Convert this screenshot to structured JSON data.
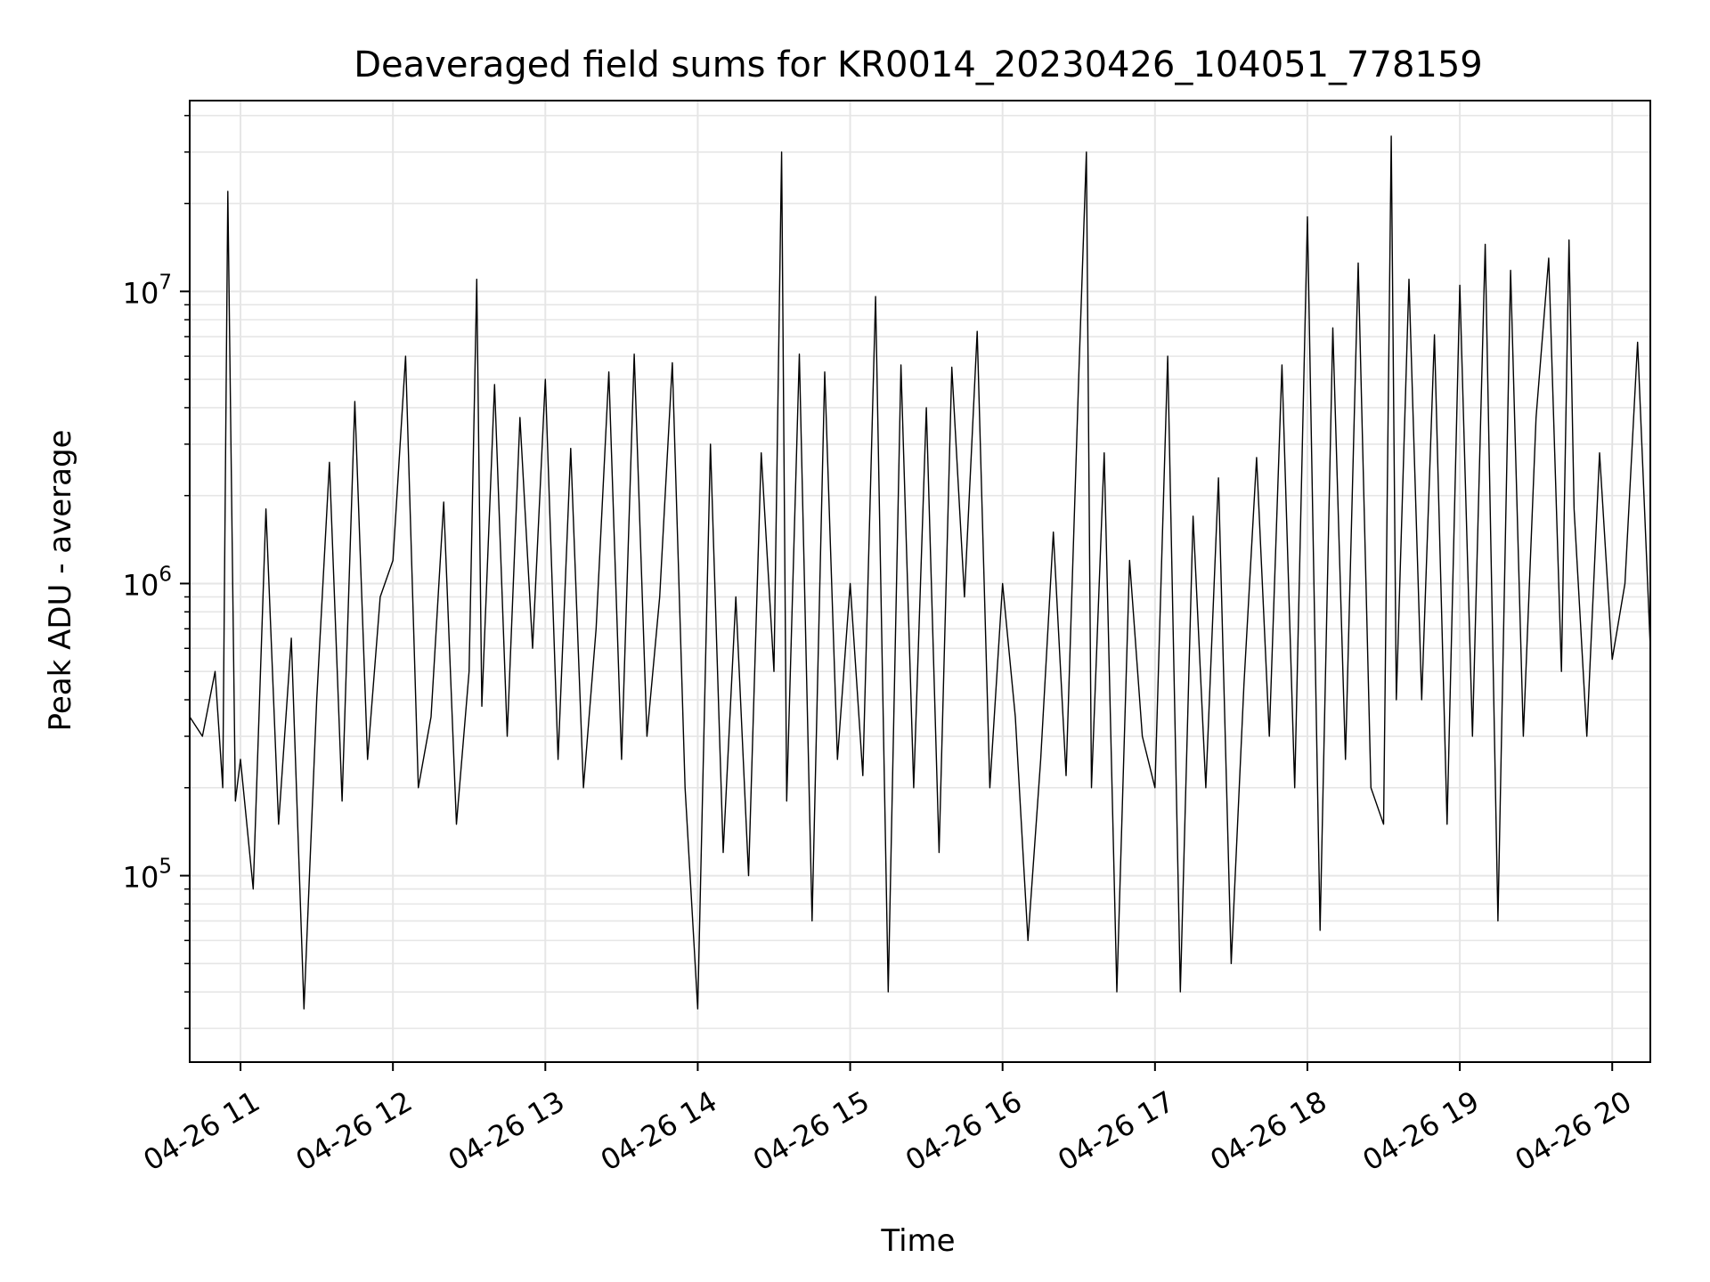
{
  "chart_data": {
    "type": "line",
    "title": "Deaveraged field sums for KR0014_20230426_104051_778159",
    "xlabel": "Time",
    "ylabel": "Peak ADU - average",
    "yscale": "log",
    "ylim": [
      23000,
      45000000
    ],
    "xlim": [
      "2023-04-26 10:40",
      "2023-04-26 20:15"
    ],
    "grid": true,
    "x_ticks": [
      {
        "time": "2023-04-26 11:00",
        "label": "04-26 11"
      },
      {
        "time": "2023-04-26 12:00",
        "label": "04-26 12"
      },
      {
        "time": "2023-04-26 13:00",
        "label": "04-26 13"
      },
      {
        "time": "2023-04-26 14:00",
        "label": "04-26 14"
      },
      {
        "time": "2023-04-26 15:00",
        "label": "04-26 15"
      },
      {
        "time": "2023-04-26 16:00",
        "label": "04-26 16"
      },
      {
        "time": "2023-04-26 17:00",
        "label": "04-26 17"
      },
      {
        "time": "2023-04-26 18:00",
        "label": "04-26 18"
      },
      {
        "time": "2023-04-26 19:00",
        "label": "04-26 19"
      },
      {
        "time": "2023-04-26 20:00",
        "label": "04-26 20"
      }
    ],
    "y_ticks": [
      {
        "value": 100000,
        "base": "10",
        "exp": "5"
      },
      {
        "value": 1000000,
        "base": "10",
        "exp": "6"
      },
      {
        "value": 10000000,
        "base": "10",
        "exp": "7"
      }
    ],
    "line_color": "#000000",
    "series": [
      {
        "x": [
          "2023-04-26 10:40",
          "2023-04-26 10:45",
          "2023-04-26 10:50",
          "2023-04-26 10:53",
          "2023-04-26 10:55",
          "2023-04-26 10:58",
          "2023-04-26 11:00",
          "2023-04-26 11:05",
          "2023-04-26 11:10",
          "2023-04-26 11:15",
          "2023-04-26 11:20",
          "2023-04-26 11:25",
          "2023-04-26 11:30",
          "2023-04-26 11:35",
          "2023-04-26 11:40",
          "2023-04-26 11:45",
          "2023-04-26 11:50",
          "2023-04-26 11:55",
          "2023-04-26 12:00",
          "2023-04-26 12:05",
          "2023-04-26 12:10",
          "2023-04-26 12:15",
          "2023-04-26 12:20",
          "2023-04-26 12:25",
          "2023-04-26 12:30",
          "2023-04-26 12:33",
          "2023-04-26 12:35",
          "2023-04-26 12:40",
          "2023-04-26 12:45",
          "2023-04-26 12:50",
          "2023-04-26 12:55",
          "2023-04-26 13:00",
          "2023-04-26 13:05",
          "2023-04-26 13:10",
          "2023-04-26 13:15",
          "2023-04-26 13:20",
          "2023-04-26 13:25",
          "2023-04-26 13:30",
          "2023-04-26 13:35",
          "2023-04-26 13:40",
          "2023-04-26 13:45",
          "2023-04-26 13:50",
          "2023-04-26 13:55",
          "2023-04-26 14:00",
          "2023-04-26 14:05",
          "2023-04-26 14:10",
          "2023-04-26 14:15",
          "2023-04-26 14:20",
          "2023-04-26 14:25",
          "2023-04-26 14:30",
          "2023-04-26 14:33",
          "2023-04-26 14:35",
          "2023-04-26 14:40",
          "2023-04-26 14:45",
          "2023-04-26 14:50",
          "2023-04-26 14:55",
          "2023-04-26 15:00",
          "2023-04-26 15:05",
          "2023-04-26 15:10",
          "2023-04-26 15:15",
          "2023-04-26 15:20",
          "2023-04-26 15:25",
          "2023-04-26 15:30",
          "2023-04-26 15:35",
          "2023-04-26 15:40",
          "2023-04-26 15:45",
          "2023-04-26 15:50",
          "2023-04-26 15:55",
          "2023-04-26 16:00",
          "2023-04-26 16:05",
          "2023-04-26 16:10",
          "2023-04-26 16:15",
          "2023-04-26 16:20",
          "2023-04-26 16:25",
          "2023-04-26 16:30",
          "2023-04-26 16:33",
          "2023-04-26 16:35",
          "2023-04-26 16:40",
          "2023-04-26 16:45",
          "2023-04-26 16:50",
          "2023-04-26 16:55",
          "2023-04-26 17:00",
          "2023-04-26 17:05",
          "2023-04-26 17:10",
          "2023-04-26 17:15",
          "2023-04-26 17:20",
          "2023-04-26 17:25",
          "2023-04-26 17:30",
          "2023-04-26 17:35",
          "2023-04-26 17:40",
          "2023-04-26 17:45",
          "2023-04-26 17:50",
          "2023-04-26 17:55",
          "2023-04-26 18:00",
          "2023-04-26 18:05",
          "2023-04-26 18:10",
          "2023-04-26 18:15",
          "2023-04-26 18:20",
          "2023-04-26 18:25",
          "2023-04-26 18:30",
          "2023-04-26 18:33",
          "2023-04-26 18:35",
          "2023-04-26 18:40",
          "2023-04-26 18:45",
          "2023-04-26 18:50",
          "2023-04-26 18:55",
          "2023-04-26 19:00",
          "2023-04-26 19:05",
          "2023-04-26 19:10",
          "2023-04-26 19:15",
          "2023-04-26 19:20",
          "2023-04-26 19:25",
          "2023-04-26 19:30",
          "2023-04-26 19:35",
          "2023-04-26 19:40",
          "2023-04-26 19:43",
          "2023-04-26 19:45",
          "2023-04-26 19:50",
          "2023-04-26 19:55",
          "2023-04-26 20:00",
          "2023-04-26 20:05",
          "2023-04-26 20:10",
          "2023-04-26 20:15"
        ],
        "y": [
          350000,
          300000,
          500000,
          200000,
          22000000,
          180000,
          250000,
          90000,
          1800000,
          150000,
          650000,
          35000,
          400000,
          2600000,
          180000,
          4200000,
          250000,
          900000,
          1200000,
          6000000,
          200000,
          350000,
          1900000,
          150000,
          500000,
          11000000,
          380000,
          4800000,
          300000,
          3700000,
          600000,
          5000000,
          250000,
          2900000,
          200000,
          700000,
          5300000,
          250000,
          6100000,
          300000,
          900000,
          5700000,
          200000,
          35000,
          3000000,
          120000,
          900000,
          100000,
          2800000,
          500000,
          30000000,
          180000,
          6100000,
          70000,
          5300000,
          250000,
          1000000,
          220000,
          9600000,
          40000,
          5600000,
          200000,
          4000000,
          120000,
          5500000,
          900000,
          7300000,
          200000,
          1000000,
          350000,
          60000,
          250000,
          1500000,
          220000,
          5200000,
          30000000,
          200000,
          2800000,
          40000,
          1200000,
          300000,
          200000,
          6000000,
          40000,
          1700000,
          200000,
          2300000,
          50000,
          450000,
          2700000,
          300000,
          5600000,
          200000,
          18000000,
          65000,
          7500000,
          250000,
          12500000,
          200000,
          150000,
          34000000,
          400000,
          11000000,
          400000,
          7100000,
          150000,
          10500000,
          300000,
          14500000,
          70000,
          11800000,
          300000,
          3700000,
          13000000,
          500000,
          15000000,
          1800000,
          300000,
          2800000,
          550000,
          1000000,
          6700000,
          600000
        ]
      }
    ]
  }
}
